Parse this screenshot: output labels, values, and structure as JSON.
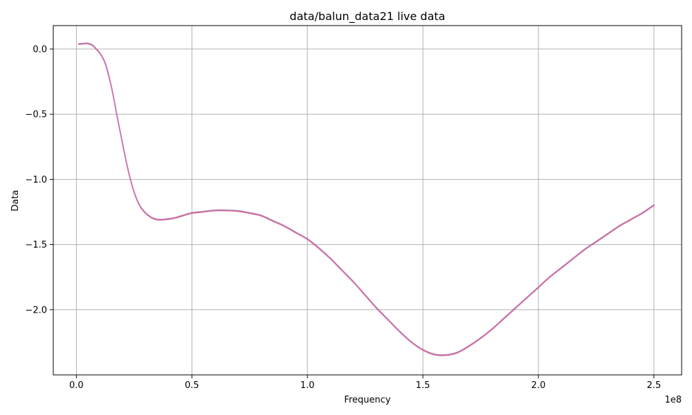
{
  "chart_data": {
    "type": "line",
    "title": "data/balun_data21 live data",
    "xlabel": "Frequency",
    "ylabel": "Data",
    "x_offset_label": "1e8",
    "xlim": [
      -10000000,
      262000000
    ],
    "ylim": [
      -2.5,
      0.18
    ],
    "grid": true,
    "x_ticks": [
      0,
      50000000,
      100000000,
      150000000,
      200000000,
      250000000
    ],
    "x_tick_labels": [
      "0.0",
      "0.5",
      "1.0",
      "1.5",
      "2.0",
      "2.5"
    ],
    "y_ticks": [
      0.0,
      -0.5,
      -1.0,
      -1.5,
      -2.0
    ],
    "y_tick_labels": [
      "0.0",
      "−0.5",
      "−1.0",
      "−1.5",
      "−2.0"
    ],
    "x": [
      1000000,
      5000000,
      8000000,
      12000000,
      15000000,
      18000000,
      22000000,
      25000000,
      28000000,
      32000000,
      35000000,
      38000000,
      42000000,
      46000000,
      50000000,
      55000000,
      60000000,
      65000000,
      70000000,
      75000000,
      80000000,
      85000000,
      90000000,
      95000000,
      100000000,
      105000000,
      110000000,
      115000000,
      120000000,
      125000000,
      130000000,
      135000000,
      140000000,
      145000000,
      150000000,
      155000000,
      160000000,
      165000000,
      170000000,
      175000000,
      180000000,
      185000000,
      190000000,
      195000000,
      200000000,
      205000000,
      210000000,
      215000000,
      220000000,
      225000000,
      230000000,
      235000000,
      240000000,
      245000000,
      250000000
    ],
    "series": [
      {
        "color": "#d62728",
        "values": [
          0.04,
          0.04,
          0.01,
          -0.09,
          -0.28,
          -0.55,
          -0.9,
          -1.1,
          -1.22,
          -1.29,
          -1.31,
          -1.31,
          -1.3,
          -1.28,
          -1.26,
          -1.25,
          -1.24,
          -1.24,
          -1.245,
          -1.26,
          -1.28,
          -1.32,
          -1.36,
          -1.41,
          -1.46,
          -1.53,
          -1.61,
          -1.7,
          -1.79,
          -1.89,
          -1.99,
          -2.08,
          -2.17,
          -2.25,
          -2.31,
          -2.345,
          -2.35,
          -2.33,
          -2.28,
          -2.22,
          -2.15,
          -2.07,
          -1.99,
          -1.91,
          -1.83,
          -1.75,
          -1.68,
          -1.61,
          -1.54,
          -1.48,
          -1.42,
          -1.36,
          -1.31,
          -1.26,
          -1.2
        ]
      },
      {
        "color": "#7f7f7f",
        "values": [
          0.04,
          0.045,
          0.015,
          -0.085,
          -0.275,
          -0.545,
          -0.895,
          -1.095,
          -1.215,
          -1.285,
          -1.305,
          -1.305,
          -1.295,
          -1.275,
          -1.255,
          -1.245,
          -1.235,
          -1.235,
          -1.24,
          -1.255,
          -1.275,
          -1.315,
          -1.355,
          -1.405,
          -1.455,
          -1.525,
          -1.605,
          -1.695,
          -1.785,
          -1.885,
          -1.985,
          -2.075,
          -2.165,
          -2.245,
          -2.305,
          -2.34,
          -2.345,
          -2.325,
          -2.275,
          -2.215,
          -2.145,
          -2.065,
          -1.985,
          -1.905,
          -1.825,
          -1.745,
          -1.675,
          -1.605,
          -1.535,
          -1.475,
          -1.415,
          -1.355,
          -1.305,
          -1.255,
          -1.195
        ]
      },
      {
        "color": "#8c6db4",
        "values": [
          0.035,
          0.04,
          0.012,
          -0.088,
          -0.278,
          -0.548,
          -0.898,
          -1.098,
          -1.218,
          -1.288,
          -1.308,
          -1.308,
          -1.298,
          -1.278,
          -1.258,
          -1.248,
          -1.238,
          -1.238,
          -1.243,
          -1.258,
          -1.278,
          -1.318,
          -1.358,
          -1.408,
          -1.458,
          -1.528,
          -1.608,
          -1.698,
          -1.788,
          -1.888,
          -1.988,
          -2.078,
          -2.168,
          -2.248,
          -2.308,
          -2.343,
          -2.348,
          -2.328,
          -2.278,
          -2.218,
          -2.148,
          -2.068,
          -1.988,
          -1.908,
          -1.828,
          -1.748,
          -1.678,
          -1.608,
          -1.538,
          -1.478,
          -1.418,
          -1.358,
          -1.308,
          -1.258,
          -1.198
        ]
      },
      {
        "color": "#e377c2",
        "values": [
          0.038,
          0.042,
          0.013,
          -0.087,
          -0.277,
          -0.547,
          -0.897,
          -1.097,
          -1.217,
          -1.287,
          -1.307,
          -1.307,
          -1.297,
          -1.277,
          -1.257,
          -1.247,
          -1.237,
          -1.237,
          -1.242,
          -1.257,
          -1.277,
          -1.317,
          -1.357,
          -1.407,
          -1.457,
          -1.527,
          -1.607,
          -1.697,
          -1.787,
          -1.887,
          -1.987,
          -2.077,
          -2.167,
          -2.247,
          -2.307,
          -2.342,
          -2.347,
          -2.327,
          -2.277,
          -2.217,
          -2.147,
          -2.067,
          -1.987,
          -1.907,
          -1.827,
          -1.747,
          -1.677,
          -1.607,
          -1.537,
          -1.477,
          -1.417,
          -1.357,
          -1.307,
          -1.257,
          -1.197
        ]
      }
    ]
  }
}
